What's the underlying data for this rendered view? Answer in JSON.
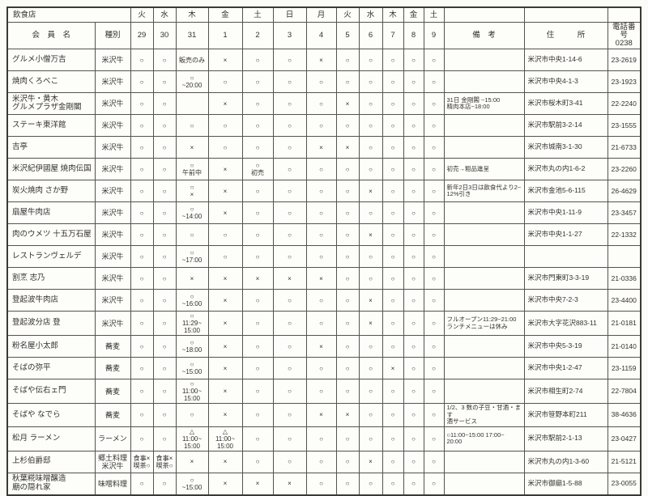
{
  "header": {
    "corner_title": "飲食店",
    "member_name": "会　員　名",
    "type": "種別",
    "remarks": "備　考",
    "address": "住　　　所",
    "phone_label": "電話番号",
    "phone_code": "0238",
    "days": [
      "火",
      "水",
      "木",
      "金",
      "土",
      "日",
      "月",
      "火",
      "水",
      "木",
      "金",
      "土"
    ],
    "dates": [
      "29",
      "30",
      "31",
      "1",
      "2",
      "3",
      "4",
      "5",
      "6",
      "7",
      "8",
      "9"
    ]
  },
  "rows": [
    {
      "name": "グルメ小僧万吉",
      "type": "米沢牛",
      "cells": [
        "○",
        "○",
        "販売のみ",
        "×",
        "○",
        "○",
        "×",
        "○",
        "○",
        "○",
        "○",
        "○"
      ],
      "remarks": "",
      "address": "米沢市中央1-14-6",
      "phone": "23-2619"
    },
    {
      "name": "焼肉くろべこ",
      "type": "米沢牛",
      "cells": [
        "○",
        "○",
        "○\n~20:00",
        "○",
        "○",
        "○",
        "○",
        "○",
        "○",
        "○",
        "○",
        "○"
      ],
      "remarks": "",
      "address": "米沢市中央4-1-3",
      "phone": "23-1923"
    },
    {
      "name": "米沢牛・黄木\nグルメプラザ金剛閣",
      "type": "米沢牛",
      "cells": [
        "○",
        "○",
        "",
        "×",
        "○",
        "○",
        "○",
        "×",
        "○",
        "○",
        "○",
        "○"
      ],
      "remarks": "31日 金剛閣 ~15:00\n精肉本店~18:00",
      "address": "米沢市桜木町3-41",
      "phone": "22-2240"
    },
    {
      "name": "ステーキ東洋館",
      "type": "米沢牛",
      "cells": [
        "○",
        "○",
        "○",
        "○",
        "○",
        "○",
        "○",
        "○",
        "○",
        "○",
        "○",
        "○"
      ],
      "remarks": "",
      "address": "米沢市駅前3-2-14",
      "phone": "23-1555"
    },
    {
      "name": "吉亭",
      "type": "米沢牛",
      "cells": [
        "○",
        "○",
        "×",
        "○",
        "○",
        "○",
        "×",
        "×",
        "○",
        "○",
        "○",
        "○"
      ],
      "remarks": "",
      "address": "米沢市城南3-1-30",
      "phone": "21-6733"
    },
    {
      "name": "米沢紀伊國屋 焼肉伝国",
      "type": "米沢牛",
      "cells": [
        "○",
        "○",
        "○\n午前中",
        "×",
        "○\n初売",
        "○",
        "○",
        "○",
        "○",
        "○",
        "○",
        "○"
      ],
      "remarks": "初売→粗品進呈",
      "address": "米沢市丸の内1-6-2",
      "phone": "23-2260"
    },
    {
      "name": "炭火焼肉 さか野",
      "type": "米沢牛",
      "cells": [
        "○",
        "○",
        "○\n×",
        "×",
        "○",
        "○",
        "○",
        "○",
        "×",
        "○",
        "○",
        "○"
      ],
      "remarks": "新年2日3日は飲食代より2~\n12%引き",
      "address": "米沢市金池5-6-115",
      "phone": "26-4629"
    },
    {
      "name": "扇屋牛肉店",
      "type": "米沢牛",
      "cells": [
        "○",
        "○",
        "○\n~14:00",
        "×",
        "○",
        "○",
        "○",
        "○",
        "○",
        "○",
        "○",
        "○"
      ],
      "remarks": "",
      "address": "米沢市中央1-11-9",
      "phone": "23-3457"
    },
    {
      "name": "肉のウメツ 十五万石屋",
      "type": "米沢牛",
      "cells": [
        "○",
        "○",
        "○",
        "○",
        "○",
        "○",
        "○",
        "○",
        "×",
        "○",
        "○",
        "○"
      ],
      "remarks": "",
      "address": "米沢市中央1-1-27",
      "phone": "22-1332"
    },
    {
      "name": "レストランヴェルデ",
      "type": "米沢牛",
      "cells": [
        "○",
        "○",
        "○\n~17:00",
        "○",
        "○",
        "○",
        "○",
        "○",
        "○",
        "○",
        "○",
        "○"
      ],
      "remarks": "",
      "address": "",
      "phone": ""
    },
    {
      "name": "割烹 志乃",
      "type": "米沢牛",
      "cells": [
        "○",
        "○",
        "×",
        "×",
        "×",
        "×",
        "×",
        "○",
        "○",
        "○",
        "○",
        "○"
      ],
      "remarks": "",
      "address": "米沢市門東町3-3-19",
      "phone": "21-0336"
    },
    {
      "name": "登起波牛肉店",
      "type": "米沢牛",
      "cells": [
        "○",
        "○",
        "○\n~16:00",
        "×",
        "○",
        "○",
        "○",
        "○",
        "×",
        "○",
        "○",
        "○"
      ],
      "remarks": "",
      "address": "米沢市中央7-2-3",
      "phone": "23-4400"
    },
    {
      "name": "登起波分店 登",
      "type": "米沢牛",
      "cells": [
        "○",
        "○",
        "○\n11:29~\n15:00",
        "×",
        "○",
        "○",
        "○",
        "○",
        "×",
        "○",
        "○",
        "○"
      ],
      "remarks": "フルオープン11:29~21:00\nランチメニューは休み",
      "address": "米沢市大字花沢883-11",
      "phone": "21-0181"
    },
    {
      "name": "粉名屋小太郎",
      "type": "蕎麦",
      "cells": [
        "○",
        "○",
        "○\n~18:00",
        "×",
        "○",
        "○",
        "×",
        "○",
        "○",
        "○",
        "○",
        "○"
      ],
      "remarks": "",
      "address": "米沢市中央5-3-19",
      "phone": "21-0140"
    },
    {
      "name": "そばの弥平",
      "type": "蕎麦",
      "cells": [
        "○",
        "○",
        "○\n~15:00",
        "×",
        "○",
        "○",
        "○",
        "○",
        "○",
        "×",
        "○",
        "○"
      ],
      "remarks": "",
      "address": "米沢市中央1-2-47",
      "phone": "23-1159"
    },
    {
      "name": "そばや伝右ェ門",
      "type": "蕎麦",
      "cells": [
        "○",
        "○",
        "○\n11:00~\n15:00",
        "×",
        "○",
        "○",
        "○",
        "○",
        "○",
        "○",
        "○",
        "○"
      ],
      "remarks": "",
      "address": "米沢市相生町2-74",
      "phone": "22-7804"
    },
    {
      "name": "そばや なでら",
      "type": "蕎麦",
      "cells": [
        "○",
        "○",
        "○",
        "×",
        "○",
        "○",
        "×",
        "×",
        "○",
        "○",
        "○",
        "○"
      ],
      "remarks": "1/2、3 数の子豆・甘酒・ます\n酒サービス",
      "address": "米沢市笹野本町211",
      "phone": "38-4636"
    },
    {
      "name": "松月 ラーメン",
      "type": "ラーメン",
      "cells": [
        "○",
        "○",
        "△\n11:00~\n15:00",
        "△\n11:00~\n15:00",
        "○",
        "○",
        "○",
        "○",
        "○",
        "○",
        "○",
        "○"
      ],
      "remarks": "○11:00~15:00 17:00~\n20:00",
      "address": "米沢市駅前2-1-13",
      "phone": "23-0427"
    },
    {
      "name": "上杉伯爵邸",
      "type": "郷土料理\n米沢牛",
      "cells": [
        "食事×\n喫茶○",
        "食事×\n喫茶○",
        "×",
        "×",
        "○",
        "○",
        "○",
        "○",
        "×",
        "○",
        "○",
        "○"
      ],
      "remarks": "",
      "address": "米沢市丸の内1-3-60",
      "phone": "21-5121"
    },
    {
      "name": "秋葉糀味噌醸造\n廟の隠れ家",
      "type": "味噌料理",
      "cells": [
        "○",
        "○",
        "○\n~15:00",
        "×",
        "×",
        "×",
        "○",
        "○",
        "○",
        "○",
        "○",
        "○"
      ],
      "remarks": "",
      "address": "米沢市御廟1-5-88",
      "phone": "23-0055"
    }
  ]
}
